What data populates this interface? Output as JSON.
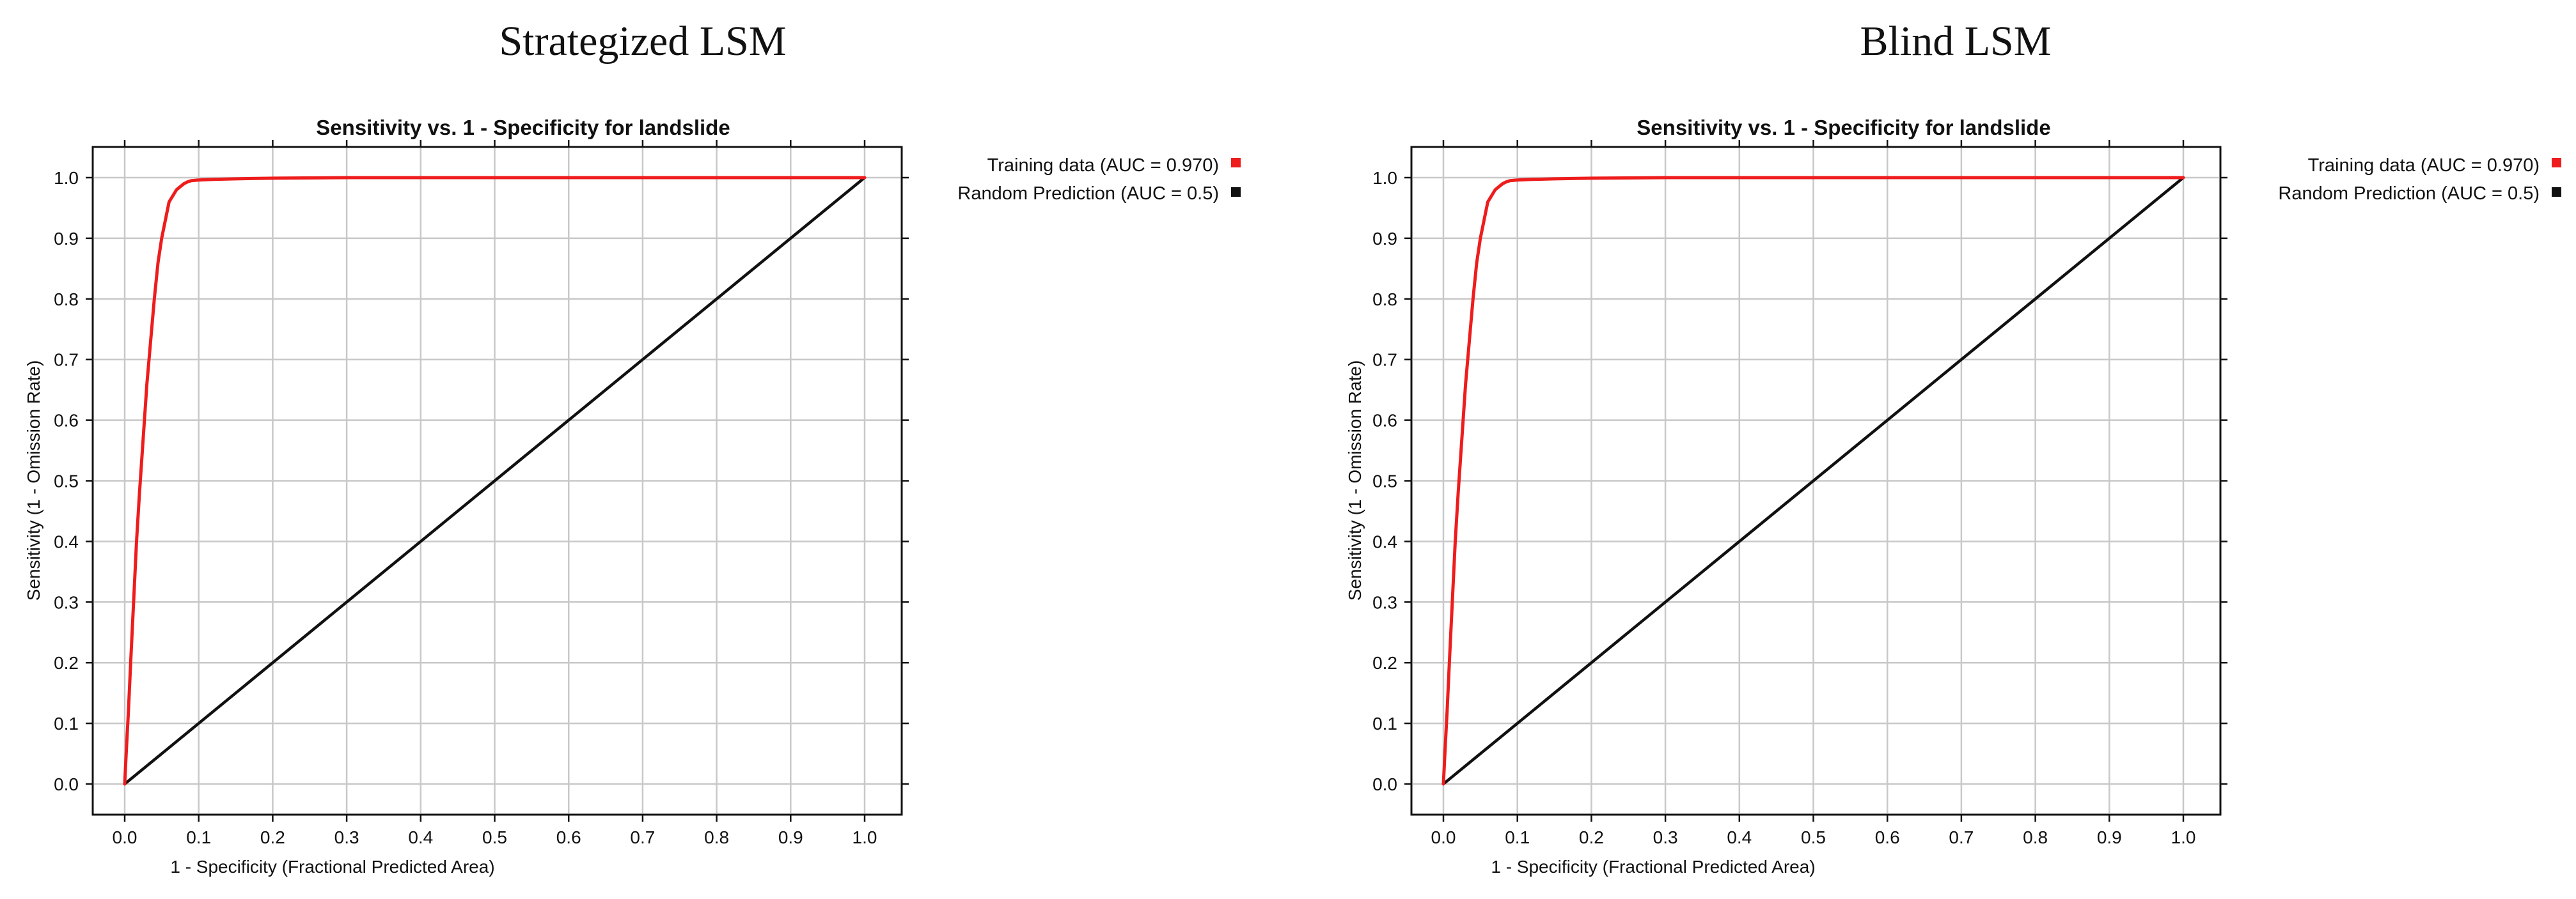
{
  "chart_data": [
    {
      "type": "line",
      "panel_title": "Strategized LSM",
      "title": "Sensitivity vs. 1 - Specificity for landslide",
      "xlabel": "1 - Specificity  (Fractional Predicted Area)",
      "ylabel": "Sensitivity  (1 - Omission Rate)",
      "xlim": [
        0,
        1
      ],
      "ylim": [
        0,
        1
      ],
      "x_ticks": [
        "0.0",
        "0.1",
        "0.2",
        "0.3",
        "0.4",
        "0.5",
        "0.6",
        "0.7",
        "0.8",
        "0.9",
        "1.0"
      ],
      "y_ticks": [
        "0.0",
        "0.1",
        "0.2",
        "0.3",
        "0.4",
        "0.5",
        "0.6",
        "0.7",
        "0.8",
        "0.9",
        "1.0"
      ],
      "grid": true,
      "legend_position": "right of plot, top",
      "series": [
        {
          "name": "Training data (AUC = 0.970)",
          "color": "#ee1c1c",
          "x": [
            0.0,
            0.002,
            0.005,
            0.008,
            0.012,
            0.016,
            0.02,
            0.025,
            0.03,
            0.035,
            0.04,
            0.045,
            0.05,
            0.055,
            0.06,
            0.065,
            0.07,
            0.075,
            0.08,
            0.085,
            0.09,
            0.1,
            0.12,
            0.15,
            0.2,
            0.3,
            0.5,
            0.7,
            0.9,
            1.0
          ],
          "y": [
            0.0,
            0.05,
            0.12,
            0.2,
            0.3,
            0.4,
            0.48,
            0.57,
            0.66,
            0.73,
            0.8,
            0.86,
            0.9,
            0.93,
            0.96,
            0.97,
            0.98,
            0.985,
            0.99,
            0.993,
            0.995,
            0.996,
            0.997,
            0.998,
            0.999,
            1.0,
            1.0,
            1.0,
            1.0,
            1.0
          ]
        },
        {
          "name": "Random Prediction (AUC = 0.5)",
          "color": "#111111",
          "x": [
            0.0,
            1.0
          ],
          "y": [
            0.0,
            1.0
          ]
        }
      ]
    },
    {
      "type": "line",
      "panel_title": "Blind LSM",
      "title": "Sensitivity vs. 1 - Specificity for landslide",
      "xlabel": "1 - Specificity  (Fractional Predicted Area)",
      "ylabel": "Sensitivity  (1 - Omission Rate)",
      "xlim": [
        0,
        1
      ],
      "ylim": [
        0,
        1
      ],
      "x_ticks": [
        "0.0",
        "0.1",
        "0.2",
        "0.3",
        "0.4",
        "0.5",
        "0.6",
        "0.7",
        "0.8",
        "0.9",
        "1.0"
      ],
      "y_ticks": [
        "0.0",
        "0.1",
        "0.2",
        "0.3",
        "0.4",
        "0.5",
        "0.6",
        "0.7",
        "0.8",
        "0.9",
        "1.0"
      ],
      "grid": true,
      "legend_position": "right of plot, top",
      "series": [
        {
          "name": "Training data (AUC = 0.970)",
          "color": "#ee1c1c",
          "x": [
            0.0,
            0.002,
            0.005,
            0.008,
            0.012,
            0.016,
            0.02,
            0.025,
            0.03,
            0.035,
            0.04,
            0.045,
            0.05,
            0.055,
            0.06,
            0.065,
            0.07,
            0.075,
            0.08,
            0.085,
            0.09,
            0.1,
            0.12,
            0.15,
            0.2,
            0.3,
            0.5,
            0.7,
            0.9,
            1.0
          ],
          "y": [
            0.0,
            0.05,
            0.12,
            0.2,
            0.3,
            0.4,
            0.48,
            0.57,
            0.66,
            0.73,
            0.8,
            0.86,
            0.9,
            0.93,
            0.96,
            0.97,
            0.98,
            0.985,
            0.99,
            0.993,
            0.995,
            0.996,
            0.997,
            0.998,
            0.999,
            1.0,
            1.0,
            1.0,
            1.0,
            1.0
          ]
        },
        {
          "name": "Random Prediction (AUC = 0.5)",
          "color": "#111111",
          "x": [
            0.0,
            1.0
          ],
          "y": [
            0.0,
            1.0
          ]
        }
      ]
    }
  ]
}
